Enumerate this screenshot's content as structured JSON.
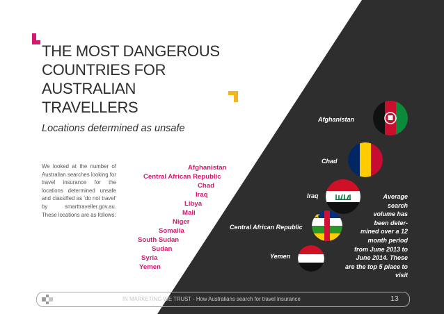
{
  "title": {
    "line1": "THE MOST DANGEROUS",
    "line2": "COUNTRIES FOR AUSTRALIAN",
    "line3": "TRAVELLERS"
  },
  "subtitle": "Locations determined as unsafe",
  "body_text": "We looked at the number of Australian searches looking for travel insurance for the locations determined unsafe and classified as ‘do not travel’ by smarttraveller.gov.au. These locations are as follows:",
  "ranked_list": [
    "Afghanistan",
    "Central African Republic",
    "Chad",
    "Iraq",
    "Libya",
    "Mali",
    "Niger",
    "Somalia",
    "South Sudan",
    "Sudan",
    "Syria",
    "Yemen"
  ],
  "flags": [
    {
      "label": "Afghanistan",
      "icon": "afghanistan-flag-icon"
    },
    {
      "label": "Chad",
      "icon": "chad-flag-icon"
    },
    {
      "label": "Iraq",
      "icon": "iraq-flag-icon"
    },
    {
      "label": "Central African Republic",
      "icon": "car-flag-icon"
    },
    {
      "label": "Yemen",
      "icon": "yemen-flag-icon"
    }
  ],
  "note": {
    "l1": "Average",
    "l2": "search",
    "l3": "volume has",
    "l4": "been deter-",
    "l5": "mined over a 12",
    "l6": "month period",
    "l7": "from June 2013 to",
    "l8": "June 2014. These",
    "l9": "are the top 5 place to",
    "l10": "visit"
  },
  "footer": {
    "text": "IN MARKETING WE TRUST  -  How Australians search for travel insurance",
    "page_number": "13"
  },
  "colors": {
    "accent_pink": "#d6176d",
    "accent_yellow": "#f2b520",
    "dark_panel": "#2e2e2e"
  }
}
